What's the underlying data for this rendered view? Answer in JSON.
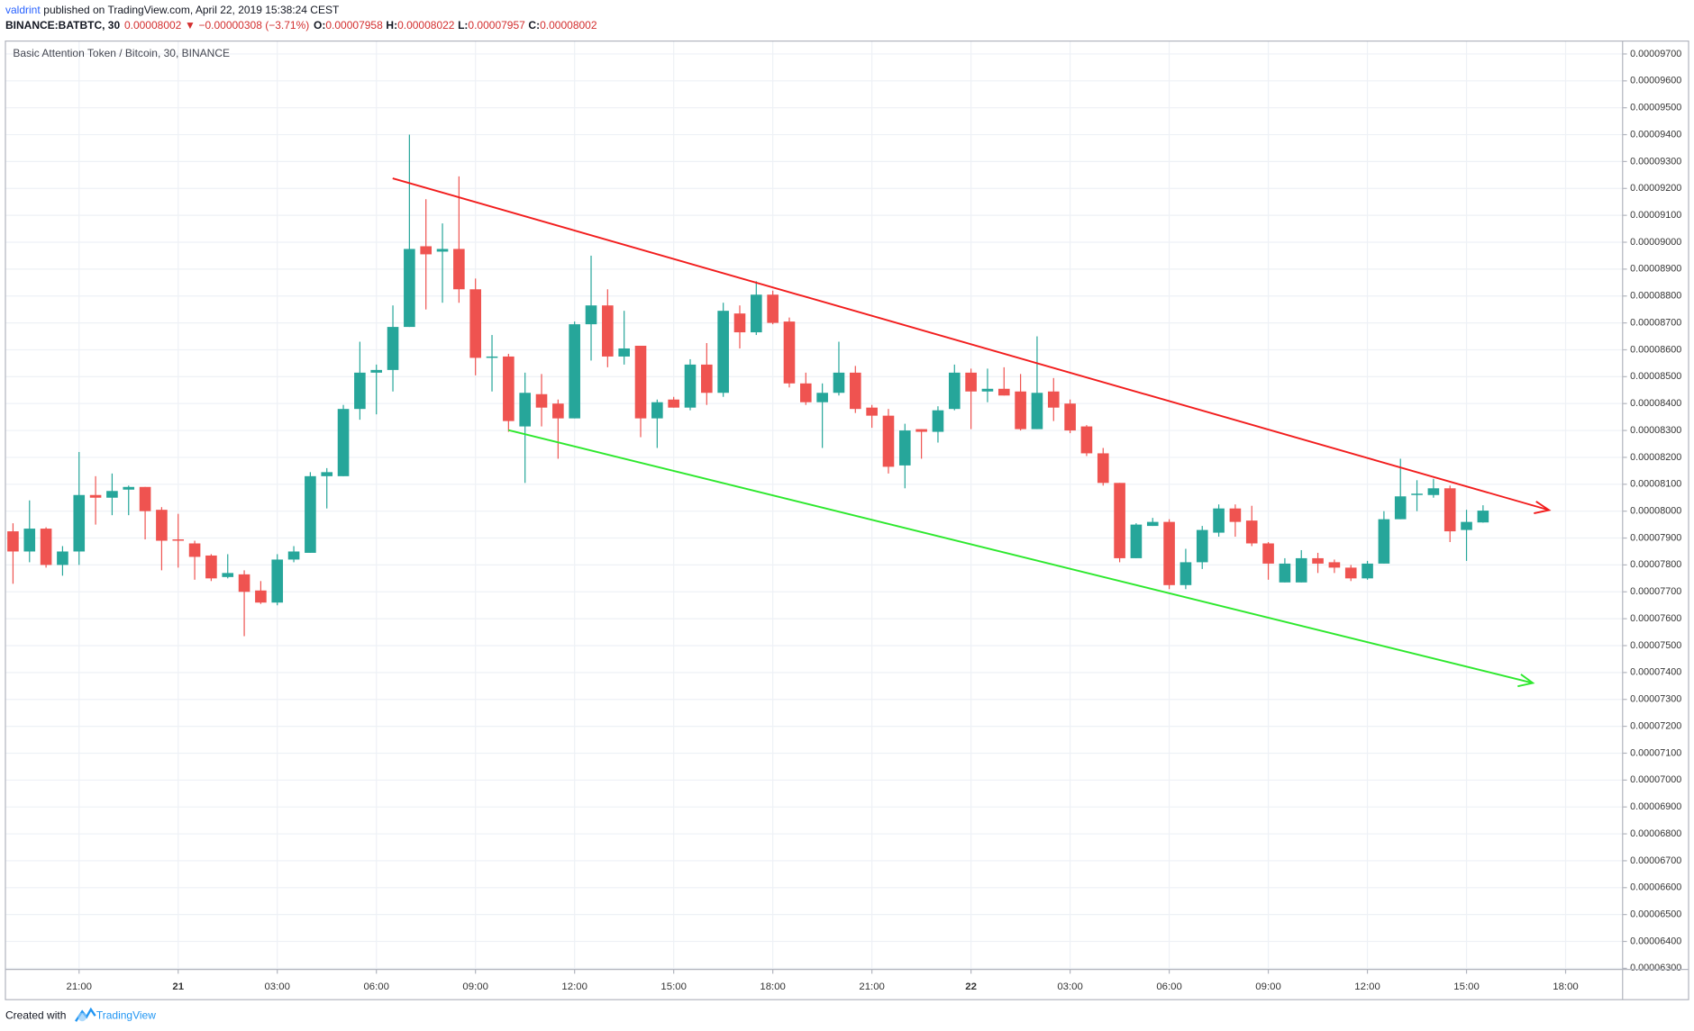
{
  "header": {
    "author": "valdrint",
    "published": "published on TradingView.com, April 22, 2019 15:38:24 CEST",
    "symbol": "BINANCE:BATBTC, 30",
    "last": "0.00008002",
    "direction": "▼",
    "change": "−0.00000308 (−3.71%)",
    "open_label": "O:",
    "open": "0.00007958",
    "high_label": "H:",
    "high": "0.00008022",
    "low_label": "L:",
    "low": "0.00007957",
    "close_label": "C:",
    "close": "0.00008002"
  },
  "footer": {
    "created": "Created with",
    "brand": "TradingView"
  },
  "chart_data": {
    "type": "candlestick",
    "title": "Basic Attention Token / Bitcoin, 30, BINANCE",
    "up_color": "#26a69a",
    "down_color": "#ef5350",
    "grid": true,
    "xlim": [
      -0.46,
      97.45
    ],
    "xticks": [
      {
        "value": 4,
        "label": "21:00"
      },
      {
        "value": 10,
        "label": "21"
      },
      {
        "value": 16,
        "label": "03:00"
      },
      {
        "value": 22,
        "label": "06:00"
      },
      {
        "value": 28,
        "label": "09:00"
      },
      {
        "value": 34,
        "label": "12:00"
      },
      {
        "value": 40,
        "label": "15:00"
      },
      {
        "value": 46,
        "label": "18:00"
      },
      {
        "value": 52,
        "label": "21:00"
      },
      {
        "value": 58,
        "label": "22"
      },
      {
        "value": 64,
        "label": "03:00"
      },
      {
        "value": 70,
        "label": "06:00"
      },
      {
        "value": 76,
        "label": "09:00"
      },
      {
        "value": 82,
        "label": "12:00"
      },
      {
        "value": 88,
        "label": "15:00"
      },
      {
        "value": 94,
        "label": "18:00"
      }
    ],
    "ylim": [
      6.296e-05,
      9.748e-05
    ],
    "yticks": [
      {
        "value": 6.3e-05,
        "label": "0.00006300"
      },
      {
        "value": 6.4e-05,
        "label": "0.00006400"
      },
      {
        "value": 6.5e-05,
        "label": "0.00006500"
      },
      {
        "value": 6.6e-05,
        "label": "0.00006600"
      },
      {
        "value": 6.7e-05,
        "label": "0.00006700"
      },
      {
        "value": 6.8e-05,
        "label": "0.00006800"
      },
      {
        "value": 6.9e-05,
        "label": "0.00006900"
      },
      {
        "value": 7e-05,
        "label": "0.00007000"
      },
      {
        "value": 7.1e-05,
        "label": "0.00007100"
      },
      {
        "value": 7.2e-05,
        "label": "0.00007200"
      },
      {
        "value": 7.3e-05,
        "label": "0.00007300"
      },
      {
        "value": 7.4e-05,
        "label": "0.00007400"
      },
      {
        "value": 7.5e-05,
        "label": "0.00007500"
      },
      {
        "value": 7.6e-05,
        "label": "0.00007600"
      },
      {
        "value": 7.7e-05,
        "label": "0.00007700"
      },
      {
        "value": 7.8e-05,
        "label": "0.00007800"
      },
      {
        "value": 7.9e-05,
        "label": "0.00007900"
      },
      {
        "value": 8e-05,
        "label": "0.00008000"
      },
      {
        "value": 8.1e-05,
        "label": "0.00008100"
      },
      {
        "value": 8.2e-05,
        "label": "0.00008200"
      },
      {
        "value": 8.3e-05,
        "label": "0.00008300"
      },
      {
        "value": 8.4e-05,
        "label": "0.00008400"
      },
      {
        "value": 8.5e-05,
        "label": "0.00008500"
      },
      {
        "value": 8.6e-05,
        "label": "0.00008600"
      },
      {
        "value": 8.7e-05,
        "label": "0.00008700"
      },
      {
        "value": 8.8e-05,
        "label": "0.00008800"
      },
      {
        "value": 8.9e-05,
        "label": "0.00008900"
      },
      {
        "value": 9e-05,
        "label": "0.00009000"
      },
      {
        "value": 9.1e-05,
        "label": "0.00009100"
      },
      {
        "value": 9.2e-05,
        "label": "0.00009200"
      },
      {
        "value": 9.3e-05,
        "label": "0.00009300"
      },
      {
        "value": 9.4e-05,
        "label": "0.00009400"
      },
      {
        "value": 9.5e-05,
        "label": "0.00009500"
      },
      {
        "value": 9.6e-05,
        "label": "0.00009600"
      },
      {
        "value": 9.7e-05,
        "label": "0.00009700"
      }
    ],
    "candles": {
      "open": [
        7.925e-05,
        7.85e-05,
        7.935e-05,
        7.8e-05,
        7.85e-05,
        8.06e-05,
        8.05e-05,
        8.08e-05,
        8.09e-05,
        8.005e-05,
        7.895e-05,
        7.88e-05,
        7.835e-05,
        7.755e-05,
        7.765e-05,
        7.705e-05,
        7.66e-05,
        7.82e-05,
        7.845e-05,
        8.13e-05,
        8.13e-05,
        8.38e-05,
        8.515e-05,
        8.525e-05,
        8.685e-05,
        8.985e-05,
        8.965e-05,
        8.975e-05,
        8.825e-05,
        8.57e-05,
        8.575e-05,
        8.315e-05,
        8.435e-05,
        8.4e-05,
        8.345e-05,
        8.695e-05,
        8.765e-05,
        8.575e-05,
        8.615e-05,
        8.345e-05,
        8.415e-05,
        8.385e-05,
        8.545e-05,
        8.44e-05,
        8.735e-05,
        8.665e-05,
        8.805e-05,
        8.705e-05,
        8.475e-05,
        8.405e-05,
        8.44e-05,
        8.515e-05,
        8.385e-05,
        8.355e-05,
        8.17e-05,
        8.305e-05,
        8.295e-05,
        8.38e-05,
        8.515e-05,
        8.445e-05,
        8.455e-05,
        8.445e-05,
        8.305e-05,
        8.445e-05,
        8.4e-05,
        8.315e-05,
        8.215e-05,
        8.105e-05,
        7.825e-05,
        7.945e-05,
        7.96e-05,
        7.725e-05,
        7.81e-05,
        7.92e-05,
        8.01e-05,
        7.965e-05,
        7.88e-05,
        7.735e-05,
        7.735e-05,
        7.825e-05,
        7.81e-05,
        7.79e-05,
        7.75e-05,
        7.805e-05,
        7.97e-05,
        8.06e-05,
        8.06e-05,
        8.085e-05,
        7.93e-05,
        7.958e-05
      ],
      "high": [
        7.955e-05,
        8.04e-05,
        7.94e-05,
        7.87e-05,
        8.22e-05,
        8.13e-05,
        8.14e-05,
        8.095e-05,
        8.09e-05,
        8.015e-05,
        7.99e-05,
        7.89e-05,
        7.84e-05,
        7.84e-05,
        7.78e-05,
        7.74e-05,
        7.84e-05,
        7.87e-05,
        8.145e-05,
        8.16e-05,
        8.395e-05,
        8.63e-05,
        8.545e-05,
        8.765e-05,
        9.4e-05,
        9.16e-05,
        9.07e-05,
        9.245e-05,
        8.865e-05,
        8.655e-05,
        8.585e-05,
        8.515e-05,
        8.51e-05,
        8.415e-05,
        8.705e-05,
        8.95e-05,
        8.825e-05,
        8.745e-05,
        8.615e-05,
        8.415e-05,
        8.425e-05,
        8.565e-05,
        8.625e-05,
        8.775e-05,
        8.765e-05,
        8.855e-05,
        8.82e-05,
        8.72e-05,
        8.515e-05,
        8.475e-05,
        8.63e-05,
        8.54e-05,
        8.395e-05,
        8.38e-05,
        8.325e-05,
        8.305e-05,
        8.39e-05,
        8.545e-05,
        8.53e-05,
        8.53e-05,
        8.535e-05,
        8.51e-05,
        8.65e-05,
        8.495e-05,
        8.415e-05,
        8.32e-05,
        8.235e-05,
        8.105e-05,
        7.955e-05,
        7.975e-05,
        7.97e-05,
        7.86e-05,
        7.945e-05,
        8.025e-05,
        8.025e-05,
        8.02e-05,
        7.885e-05,
        7.825e-05,
        7.855e-05,
        7.845e-05,
        7.82e-05,
        7.8e-05,
        7.815e-05,
        8e-05,
        8.195e-05,
        8.115e-05,
        8.12e-05,
        8.095e-05,
        8.005e-05,
        8.022e-05
      ],
      "low": [
        7.73e-05,
        7.81e-05,
        7.79e-05,
        7.76e-05,
        7.8e-05,
        7.95e-05,
        7.985e-05,
        7.985e-05,
        7.895e-05,
        7.78e-05,
        7.79e-05,
        7.745e-05,
        7.74e-05,
        7.75e-05,
        7.535e-05,
        7.655e-05,
        7.65e-05,
        7.81e-05,
        7.845e-05,
        8.01e-05,
        8.13e-05,
        8.34e-05,
        8.36e-05,
        8.445e-05,
        8.685e-05,
        8.75e-05,
        8.775e-05,
        8.775e-05,
        8.505e-05,
        8.445e-05,
        8.295e-05,
        8.105e-05,
        8.315e-05,
        8.195e-05,
        8.345e-05,
        8.56e-05,
        8.535e-05,
        8.545e-05,
        8.275e-05,
        8.235e-05,
        8.385e-05,
        8.375e-05,
        8.395e-05,
        8.425e-05,
        8.605e-05,
        8.655e-05,
        8.695e-05,
        8.46e-05,
        8.395e-05,
        8.235e-05,
        8.43e-05,
        8.365e-05,
        8.31e-05,
        8.14e-05,
        8.085e-05,
        8.195e-05,
        8.255e-05,
        8.375e-05,
        8.305e-05,
        8.405e-05,
        8.43e-05,
        8.3e-05,
        8.305e-05,
        8.335e-05,
        8.29e-05,
        8.205e-05,
        8.095e-05,
        7.81e-05,
        7.825e-05,
        7.945e-05,
        7.71e-05,
        7.71e-05,
        7.785e-05,
        7.905e-05,
        7.905e-05,
        7.87e-05,
        7.745e-05,
        7.735e-05,
        7.735e-05,
        7.77e-05,
        7.77e-05,
        7.74e-05,
        7.745e-05,
        7.805e-05,
        7.97e-05,
        8e-05,
        8.05e-05,
        7.885e-05,
        7.815e-05,
        7.957e-05
      ],
      "close": [
        7.85e-05,
        7.935e-05,
        7.8e-05,
        7.85e-05,
        8.06e-05,
        8.05e-05,
        8.075e-05,
        8.09e-05,
        8e-05,
        7.89e-05,
        7.89e-05,
        7.83e-05,
        7.75e-05,
        7.77e-05,
        7.7e-05,
        7.66e-05,
        7.82e-05,
        7.85e-05,
        8.13e-05,
        8.145e-05,
        8.38e-05,
        8.515e-05,
        8.525e-05,
        8.685e-05,
        8.975e-05,
        8.955e-05,
        8.975e-05,
        8.825e-05,
        8.57e-05,
        8.575e-05,
        8.335e-05,
        8.44e-05,
        8.385e-05,
        8.345e-05,
        8.695e-05,
        8.765e-05,
        8.575e-05,
        8.605e-05,
        8.345e-05,
        8.405e-05,
        8.385e-05,
        8.545e-05,
        8.44e-05,
        8.745e-05,
        8.665e-05,
        8.805e-05,
        8.7e-05,
        8.475e-05,
        8.405e-05,
        8.44e-05,
        8.515e-05,
        8.38e-05,
        8.355e-05,
        8.165e-05,
        8.3e-05,
        8.295e-05,
        8.375e-05,
        8.515e-05,
        8.445e-05,
        8.455e-05,
        8.43e-05,
        8.305e-05,
        8.44e-05,
        8.385e-05,
        8.3e-05,
        8.215e-05,
        8.105e-05,
        7.825e-05,
        7.95e-05,
        7.96e-05,
        7.725e-05,
        7.81e-05,
        7.93e-05,
        8.01e-05,
        7.96e-05,
        7.88e-05,
        7.805e-05,
        7.805e-05,
        7.825e-05,
        7.805e-05,
        7.79e-05,
        7.75e-05,
        7.805e-05,
        7.97e-05,
        8.055e-05,
        8.065e-05,
        8.085e-05,
        7.925e-05,
        7.96e-05,
        8.002e-05
      ]
    }
  }
}
